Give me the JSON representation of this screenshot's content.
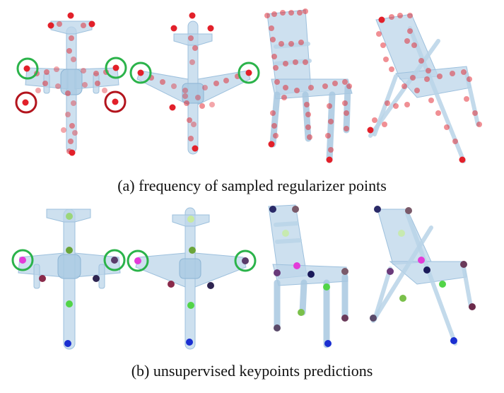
{
  "figure": {
    "caption_a": "(a) frequency of sampled regularizer points",
    "caption_b": "(b) unsupervised keypoints predictions"
  },
  "colors": {
    "regularizer_point": "#e2202a",
    "green_circle": "#2bb34a",
    "red_circle": "#b3141d",
    "object_body": "#bcd6ea"
  }
}
